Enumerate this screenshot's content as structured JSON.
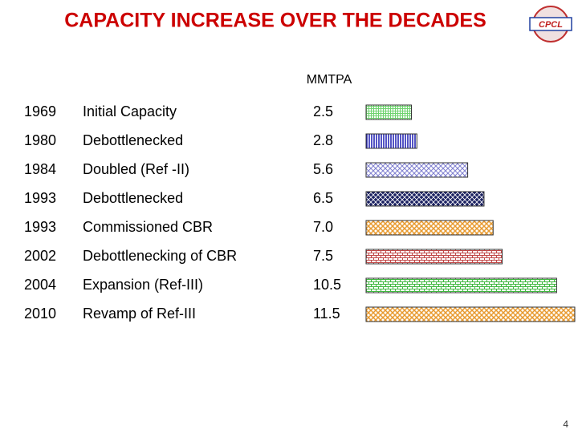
{
  "chart_data": {
    "type": "bar",
    "title": "CAPACITY INCREASE OVER THE DECADES",
    "logo_text": "CPCL",
    "unit": "MMTPA",
    "years": [
      "1969",
      "1980",
      "1984",
      "1993",
      "1993",
      "2002",
      "2004",
      "2010"
    ],
    "categories": [
      "Initial Capacity",
      "Debottlenecked",
      "Doubled (Ref -II)",
      "Debottlenecked",
      "Commissioned CBR",
      "Debottlenecking of CBR",
      "Expansion (Ref-III)",
      "Revamp of Ref-III"
    ],
    "values": [
      2.5,
      2.8,
      5.6,
      6.5,
      7.0,
      7.5,
      10.5,
      11.5
    ],
    "value_labels": [
      "2.5",
      "2.8",
      "5.6",
      "6.5",
      "7.0",
      "7.5",
      "10.5",
      "11.5"
    ],
    "colors": [
      "#6fd36f",
      "#1a1ab0",
      "#8080d0",
      "#1a2060",
      "#e89a30",
      "#c04848",
      "#40b840",
      "#e89a30"
    ],
    "page_number": "4"
  }
}
